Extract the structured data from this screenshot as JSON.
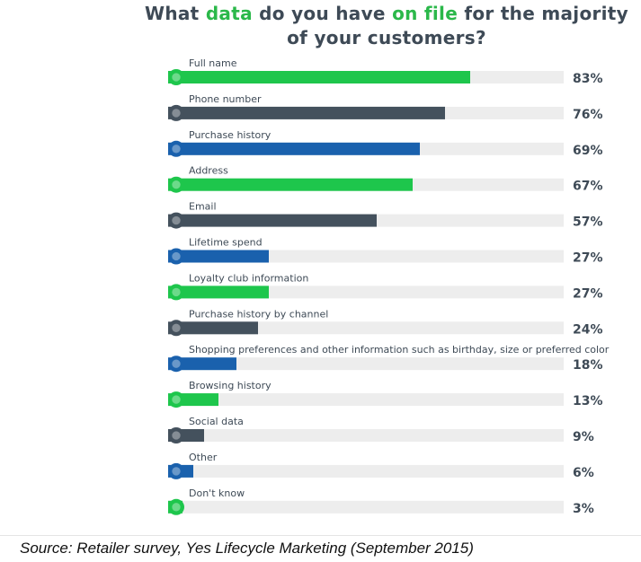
{
  "title": {
    "part1": "What ",
    "highlight1": "data",
    "part2": " do you have ",
    "highlight2": "on file",
    "part3": " for the majority",
    "line2": "of your customers?"
  },
  "colors": {
    "green": "#1ec64c",
    "dark": "#44515d",
    "blue": "#1a61ad",
    "track": "#ededed",
    "text": "#3e4a56"
  },
  "chart_data": {
    "type": "bar",
    "orientation": "horizontal",
    "value_unit": "%",
    "xlim": [
      0,
      100
    ],
    "categories": [
      "Full name",
      "Phone number",
      "Purchase history",
      "Address",
      "Email",
      "Lifetime spend",
      "Loyalty club information",
      "Purchase history by channel",
      "Shopping preferences and other information such as birthday, size or preferred color",
      "Browsing history",
      "Social data",
      "Other",
      "Don't know"
    ],
    "values": [
      83,
      76,
      69,
      67,
      57,
      27,
      27,
      24,
      18,
      13,
      9,
      6,
      3
    ],
    "value_labels": [
      "83%",
      "76%",
      "69%",
      "67%",
      "57%",
      "27%",
      "27%",
      "24%",
      "18%",
      "13%",
      "9%",
      "6%",
      "3%"
    ],
    "bar_colors": [
      "green",
      "dark",
      "blue",
      "green",
      "dark",
      "blue",
      "green",
      "dark",
      "blue",
      "green",
      "dark",
      "blue",
      "green"
    ],
    "grid": false,
    "legend": "none"
  },
  "source": "Source: Retailer survey, Yes Lifecycle Marketing (September 2015)"
}
